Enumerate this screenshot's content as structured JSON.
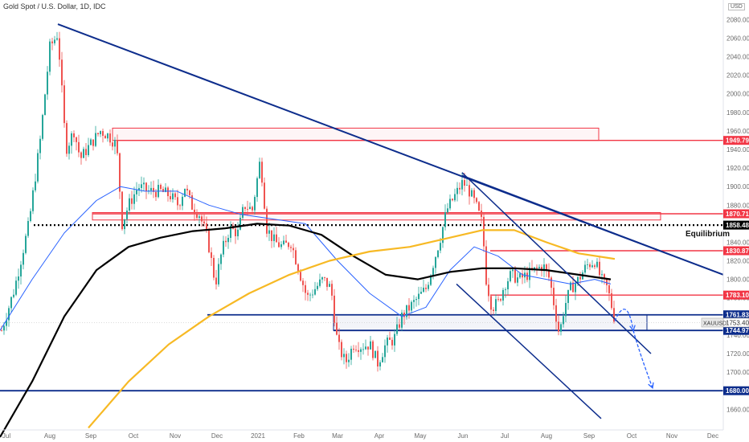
{
  "chart_data": {
    "type": "candlestick",
    "title": "Gold Spot / U.S. Dollar, 1D, IDC",
    "currency_label": "USD",
    "symbol_tag": "XAUUSD",
    "ylim": [
      1640,
      2100
    ],
    "y_ticks": [
      1660,
      1680,
      1700,
      1720,
      1740,
      1760,
      1780,
      1800,
      1820,
      1840,
      1860,
      1880,
      1900,
      1920,
      1940,
      1960,
      1980,
      2000,
      2020,
      2040,
      2060,
      2080
    ],
    "x_ticks": [
      "Jul",
      "Aug",
      "Sep",
      "Oct",
      "Nov",
      "Dec",
      "2021",
      "Feb",
      "Mar",
      "Apr",
      "May",
      "Jun",
      "Jul",
      "Aug",
      "Sep",
      "Oct",
      "Nov",
      "Dec"
    ],
    "levels": [
      {
        "value": 1949.79,
        "label": "1949.79",
        "color": "#f23645"
      },
      {
        "value": 1870.71,
        "label": "1870.71",
        "color": "#f23645"
      },
      {
        "value": 1858.48,
        "label": "1858.48",
        "color": "#000000",
        "style": "dotted"
      },
      {
        "value": 1830.87,
        "label": "1830.87",
        "color": "#f23645"
      },
      {
        "value": 1783.1,
        "label": "1783.10",
        "color": "#f23645"
      },
      {
        "value": 1761.83,
        "label": "1761.83",
        "color": "#0d2d8c"
      },
      {
        "value": 1744.97,
        "label": "1744.97",
        "color": "#0d2d8c"
      },
      {
        "value": 1680.0,
        "label": "1680.00",
        "color": "#0d2d8c"
      }
    ],
    "current_price": {
      "value": 1753.4,
      "label": "1753.40"
    },
    "annotations": [
      {
        "text": "Equilibrium"
      }
    ],
    "series": [
      {
        "kind": "candles",
        "anchors": [
          [
            2,
            1745
          ],
          [
            18,
            1790
          ],
          [
            36,
            1860
          ],
          [
            50,
            1950
          ],
          [
            62,
            2050
          ],
          [
            72,
            2065
          ],
          [
            82,
            1940
          ],
          [
            92,
            1960
          ],
          [
            100,
            1930
          ],
          [
            112,
            1945
          ],
          [
            125,
            1960
          ],
          [
            135,
            1955
          ],
          [
            145,
            1945
          ],
          [
            152,
            1860
          ],
          [
            160,
            1880
          ],
          [
            172,
            1900
          ],
          [
            185,
            1895
          ],
          [
            200,
            1895
          ],
          [
            212,
            1890
          ],
          [
            222,
            1880
          ],
          [
            230,
            1900
          ],
          [
            238,
            1880
          ],
          [
            248,
            1870
          ],
          [
            258,
            1845
          ],
          [
            268,
            1795
          ],
          [
            276,
            1830
          ],
          [
            286,
            1855
          ],
          [
            296,
            1850
          ],
          [
            304,
            1880
          ],
          [
            314,
            1875
          ],
          [
            324,
            1930
          ],
          [
            332,
            1855
          ],
          [
            342,
            1840
          ],
          [
            352,
            1835
          ],
          [
            362,
            1840
          ],
          [
            372,
            1810
          ],
          [
            382,
            1780
          ],
          [
            392,
            1790
          ],
          [
            402,
            1800
          ],
          [
            412,
            1790
          ],
          [
            420,
            1730
          ],
          [
            430,
            1710
          ],
          [
            440,
            1730
          ],
          [
            450,
            1728
          ],
          [
            460,
            1730
          ],
          [
            470,
            1710
          ],
          [
            480,
            1730
          ],
          [
            490,
            1735
          ],
          [
            500,
            1760
          ],
          [
            510,
            1770
          ],
          [
            520,
            1780
          ],
          [
            530,
            1790
          ],
          [
            540,
            1820
          ],
          [
            548,
            1845
          ],
          [
            556,
            1875
          ],
          [
            566,
            1890
          ],
          [
            576,
            1905
          ],
          [
            584,
            1895
          ],
          [
            592,
            1880
          ],
          [
            600,
            1860
          ],
          [
            605,
            1800
          ],
          [
            612,
            1770
          ],
          [
            620,
            1775
          ],
          [
            628,
            1795
          ],
          [
            636,
            1805
          ],
          [
            646,
            1800
          ],
          [
            656,
            1805
          ],
          [
            666,
            1810
          ],
          [
            676,
            1815
          ],
          [
            684,
            1800
          ],
          [
            690,
            1770
          ],
          [
            696,
            1740
          ],
          [
            702,
            1770
          ],
          [
            710,
            1790
          ],
          [
            720,
            1800
          ],
          [
            730,
            1815
          ],
          [
            740,
            1820
          ],
          [
            748,
            1800
          ],
          [
            756,
            1790
          ],
          [
            764,
            1760
          ]
        ]
      },
      {
        "kind": "line",
        "name": "",
        "color": "#2962ff",
        "width": 1,
        "points": [
          [
            0,
            1745
          ],
          [
            40,
            1800
          ],
          [
            80,
            1850
          ],
          [
            120,
            1885
          ],
          [
            150,
            1900
          ],
          [
            180,
            1895
          ],
          [
            220,
            1895
          ],
          [
            260,
            1880
          ],
          [
            300,
            1870
          ],
          [
            340,
            1865
          ],
          [
            380,
            1860
          ],
          [
            420,
            1820
          ],
          [
            460,
            1785
          ],
          [
            500,
            1760
          ],
          [
            530,
            1770
          ],
          [
            560,
            1810
          ],
          [
            590,
            1835
          ],
          [
            620,
            1825
          ],
          [
            650,
            1805
          ],
          [
            680,
            1800
          ],
          [
            710,
            1795
          ],
          [
            740,
            1800
          ],
          [
            760,
            1795
          ]
        ]
      },
      {
        "kind": "line",
        "name": "",
        "color": "#000000",
        "width": 2.2,
        "points": [
          [
            0,
            1630
          ],
          [
            40,
            1690
          ],
          [
            80,
            1760
          ],
          [
            120,
            1810
          ],
          [
            160,
            1835
          ],
          [
            200,
            1845
          ],
          [
            240,
            1852
          ],
          [
            280,
            1855
          ],
          [
            320,
            1860
          ],
          [
            360,
            1858
          ],
          [
            400,
            1848
          ],
          [
            440,
            1825
          ],
          [
            480,
            1805
          ],
          [
            520,
            1800
          ],
          [
            560,
            1808
          ],
          [
            600,
            1812
          ],
          [
            640,
            1812
          ],
          [
            680,
            1810
          ],
          [
            720,
            1805
          ],
          [
            760,
            1800
          ]
        ]
      },
      {
        "kind": "line",
        "name": "",
        "color": "#f7b924",
        "width": 2.2,
        "points": [
          [
            110,
            1640
          ],
          [
            160,
            1690
          ],
          [
            210,
            1730
          ],
          [
            260,
            1760
          ],
          [
            310,
            1785
          ],
          [
            360,
            1805
          ],
          [
            410,
            1820
          ],
          [
            460,
            1830
          ],
          [
            510,
            1835
          ],
          [
            560,
            1845
          ],
          [
            600,
            1853
          ],
          [
            640,
            1853
          ],
          [
            680,
            1840
          ],
          [
            720,
            1828
          ],
          [
            765,
            1822
          ]
        ]
      }
    ],
    "trendlines": [
      {
        "from": [
          72,
          2075
        ],
        "to": [
          900,
          1805
        ],
        "color": "#0d2d8c",
        "width": 2
      },
      {
        "from": [
          575,
          1912
        ],
        "to": [
          900,
          1805
        ],
        "color": "#0d2d8c",
        "width": 1.5
      },
      {
        "from": [
          575,
          1915
        ],
        "to": [
          810,
          1720
        ],
        "color": "#0d2d8c",
        "width": 1.5
      },
      {
        "from": [
          568,
          1795
        ],
        "to": [
          748,
          1650
        ],
        "color": "#0d2d8c",
        "width": 1.5
      }
    ],
    "zones": [
      {
        "x1": 140,
        "x2": 745,
        "y1": 1949.79,
        "y2": 1963,
        "stroke": "#f23645"
      },
      {
        "x1": 115,
        "x2": 822,
        "y1": 1864,
        "y2": 1872,
        "stroke": "#f23645"
      },
      {
        "x1": 415,
        "x2": 805,
        "y1": 1744.97,
        "y2": 1761.83,
        "stroke": "#0d2d8c"
      }
    ],
    "projection_arrows": [
      {
        "path": [
          [
            765,
            1755
          ],
          [
            780,
            1785
          ],
          [
            788,
            1745
          ]
        ],
        "color": "#2962ff"
      },
      {
        "path": [
          [
            788,
            1745
          ],
          [
            796,
            1720
          ],
          [
            812,
            1683
          ]
        ],
        "color": "#2962ff"
      }
    ]
  }
}
